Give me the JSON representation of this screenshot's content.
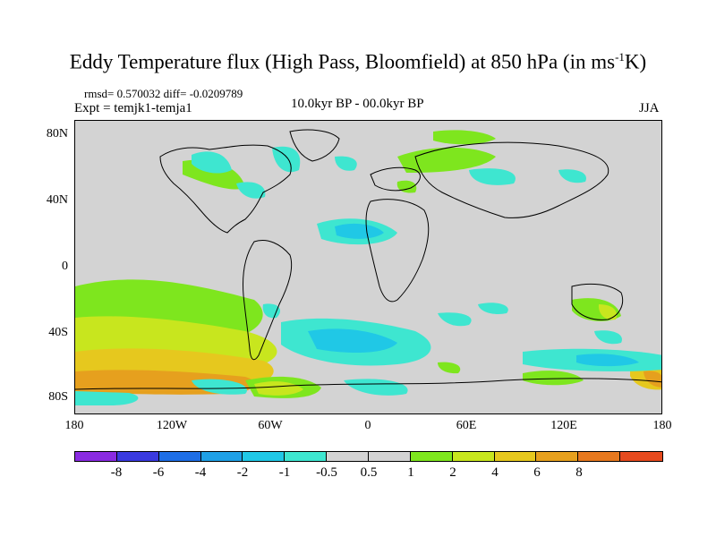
{
  "title": {
    "main": "Eddy Temperature flux (High Pass, Bloomfield) at 850 hPa (in ms",
    "sup": "-1",
    "end": "K)"
  },
  "stats": "rmsd= 0.570032 diff= -0.0209789",
  "expt": "Expt = temjk1-temja1",
  "period": "10.0kyr BP - 00.0kyr BP",
  "season": "JJA",
  "lat_labels": [
    "80N",
    "40N",
    "0",
    "40S",
    "80S"
  ],
  "lon_labels": [
    "180",
    "120W",
    "60W",
    "0",
    "60E",
    "120E",
    "180"
  ],
  "colorbar": {
    "colors": [
      "#8a2be2",
      "#3a3ae0",
      "#1e6ee6",
      "#1fa0e6",
      "#20c8e6",
      "#3ee6d0",
      "#d3d3d3",
      "#d3d3d3",
      "#7ee61e",
      "#c8e61e",
      "#e6c81e",
      "#e6a01e",
      "#e6781e",
      "#e64a1e"
    ],
    "labels": [
      "-8",
      "-6",
      "-4",
      "-2",
      "-1",
      "-0.5",
      "0.5",
      "1",
      "2",
      "4",
      "6",
      "8"
    ]
  },
  "colors": {
    "land_bg": "#d3d3d3",
    "pos1": "#7ee61e",
    "pos2": "#c8e61e",
    "pos3": "#e6c81e",
    "pos4": "#e6a01e",
    "neg05": "#3ee6d0",
    "neg1": "#20c8e6",
    "neg2": "#1fa0e6"
  }
}
